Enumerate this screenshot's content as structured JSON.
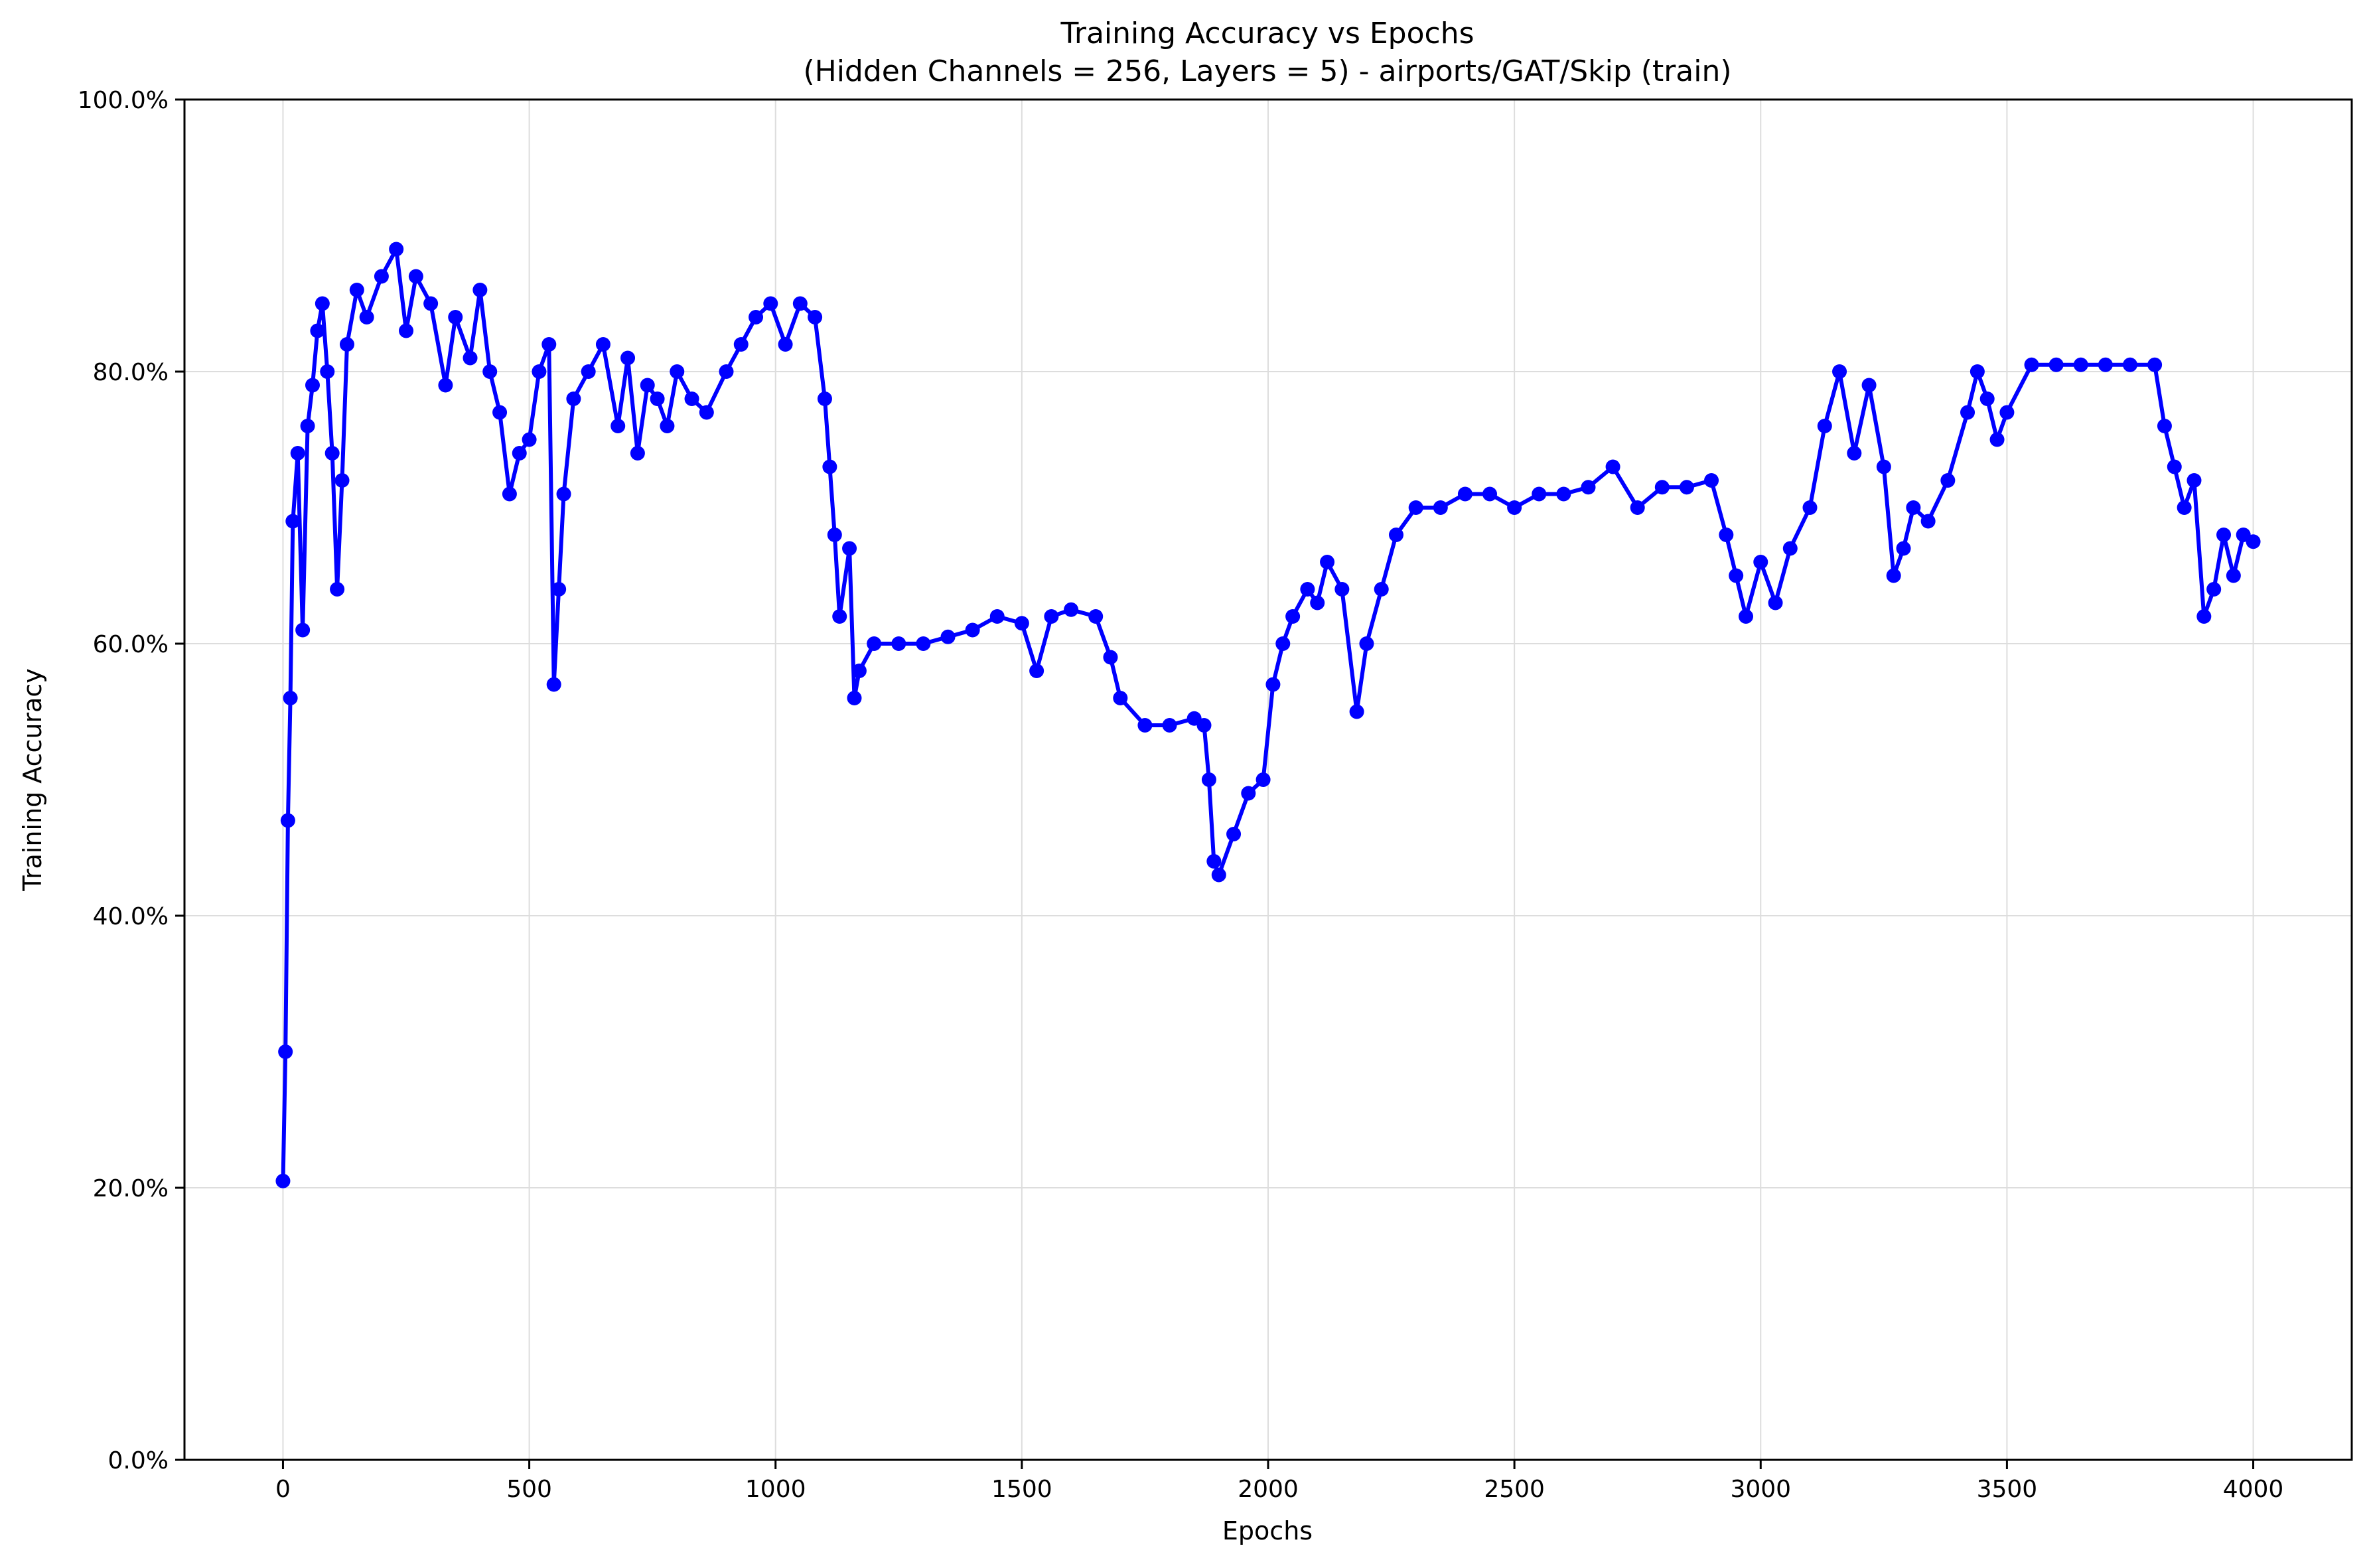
{
  "chart_data": {
    "type": "line",
    "title": "Training Accuracy vs Epochs",
    "subtitle": "(Hidden Channels = 256, Layers = 5) - airports/GAT/Skip (train)",
    "xlabel": "Epochs",
    "ylabel": "Training Accuracy",
    "xlim": [
      -200,
      4200
    ],
    "ylim": [
      0.0,
      1.0
    ],
    "x_ticks": [
      0,
      500,
      1000,
      1500,
      2000,
      2500,
      3000,
      3500,
      4000
    ],
    "x_tick_labels": [
      "0",
      "500",
      "1000",
      "1500",
      "2000",
      "2500",
      "3000",
      "3500",
      "4000"
    ],
    "y_ticks": [
      0.0,
      0.2,
      0.4,
      0.6,
      0.8,
      1.0
    ],
    "y_tick_labels": [
      "0.0%",
      "20.0%",
      "40.0%",
      "60.0%",
      "80.0%",
      "100.0%"
    ],
    "grid": true,
    "legend": "none",
    "colors": {
      "series": "#0000ff",
      "grid": "#dddddd",
      "axes": "#000000"
    },
    "series": [
      {
        "marker": "circle",
        "x": [
          0,
          5,
          10,
          15,
          20,
          30,
          40,
          50,
          60,
          70,
          80,
          90,
          100,
          110,
          120,
          130,
          150,
          170,
          200,
          230,
          250,
          270,
          300,
          330,
          350,
          380,
          400,
          420,
          440,
          460,
          480,
          500,
          520,
          540,
          550,
          560,
          570,
          590,
          620,
          650,
          680,
          700,
          720,
          740,
          760,
          780,
          800,
          830,
          860,
          900,
          930,
          960,
          990,
          1020,
          1050,
          1080,
          1100,
          1110,
          1120,
          1130,
          1150,
          1160,
          1170,
          1200,
          1250,
          1300,
          1350,
          1400,
          1450,
          1500,
          1530,
          1560,
          1600,
          1650,
          1680,
          1700,
          1750,
          1800,
          1850,
          1870,
          1880,
          1890,
          1900,
          1930,
          1960,
          1990,
          2010,
          2030,
          2050,
          2080,
          2100,
          2120,
          2150,
          2180,
          2200,
          2230,
          2260,
          2300,
          2350,
          2400,
          2450,
          2500,
          2550,
          2600,
          2650,
          2700,
          2750,
          2800,
          2850,
          2900,
          2930,
          2950,
          2970,
          3000,
          3030,
          3060,
          3100,
          3130,
          3160,
          3190,
          3220,
          3250,
          3270,
          3290,
          3310,
          3340,
          3380,
          3420,
          3440,
          3460,
          3480,
          3500,
          3550,
          3600,
          3650,
          3700,
          3750,
          3800,
          3820,
          3840,
          3860,
          3880,
          3900,
          3920,
          3940,
          3960,
          3980,
          4000
        ],
        "y": [
          0.205,
          0.3,
          0.47,
          0.56,
          0.69,
          0.74,
          0.61,
          0.76,
          0.79,
          0.83,
          0.85,
          0.8,
          0.74,
          0.64,
          0.72,
          0.82,
          0.86,
          0.84,
          0.87,
          0.89,
          0.83,
          0.87,
          0.85,
          0.79,
          0.84,
          0.81,
          0.86,
          0.8,
          0.77,
          0.71,
          0.74,
          0.75,
          0.8,
          0.82,
          0.57,
          0.64,
          0.71,
          0.78,
          0.8,
          0.82,
          0.76,
          0.81,
          0.74,
          0.79,
          0.78,
          0.76,
          0.8,
          0.78,
          0.77,
          0.8,
          0.82,
          0.84,
          0.85,
          0.82,
          0.85,
          0.84,
          0.78,
          0.73,
          0.68,
          0.62,
          0.67,
          0.56,
          0.58,
          0.6,
          0.6,
          0.6,
          0.605,
          0.61,
          0.62,
          0.615,
          0.58,
          0.62,
          0.625,
          0.62,
          0.59,
          0.56,
          0.54,
          0.54,
          0.545,
          0.54,
          0.5,
          0.44,
          0.43,
          0.46,
          0.49,
          0.5,
          0.57,
          0.6,
          0.62,
          0.64,
          0.63,
          0.66,
          0.64,
          0.55,
          0.6,
          0.64,
          0.68,
          0.7,
          0.7,
          0.71,
          0.71,
          0.7,
          0.71,
          0.71,
          0.715,
          0.73,
          0.7,
          0.715,
          0.715,
          0.72,
          0.68,
          0.65,
          0.62,
          0.66,
          0.63,
          0.67,
          0.7,
          0.76,
          0.8,
          0.74,
          0.79,
          0.73,
          0.65,
          0.67,
          0.7,
          0.69,
          0.72,
          0.77,
          0.8,
          0.78,
          0.75,
          0.77,
          0.805,
          0.805,
          0.805,
          0.805,
          0.805,
          0.805,
          0.76,
          0.73,
          0.7,
          0.72,
          0.62,
          0.64,
          0.68,
          0.65,
          0.68,
          0.675
        ]
      }
    ]
  }
}
